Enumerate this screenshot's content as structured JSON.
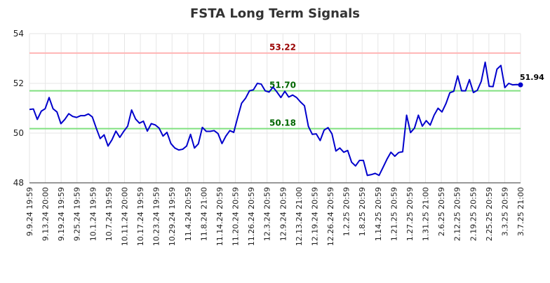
{
  "chart_data": {
    "type": "line",
    "title": "FSTA Long Term Signals",
    "xlabel": "",
    "ylabel": "",
    "ylim": [
      48,
      54
    ],
    "y_ticks": [
      "48",
      "50",
      "52",
      "54"
    ],
    "grid": true,
    "x_tick_labels": [
      "9.9.24 19:59",
      "9.13.24 20:00",
      "9.19.24 19:59",
      "9.25.24 19:59",
      "10.1.24 19:59",
      "10.7.24 19:59",
      "10.11.24 20:00",
      "10.17.24 19:59",
      "10.23.24 19:59",
      "10.29.24 19:59",
      "11.4.24 20:59",
      "11.8.24 21:00",
      "11.14.24 20:59",
      "11.20.24 20:59",
      "11.26.24 20:59",
      "12.3.24 20:59",
      "12.9.24 20:59",
      "12.13.24 21:00",
      "12.19.24 20:59",
      "12.26.24 20:59",
      "1.2.25 20:59",
      "1.8.25 20:59",
      "1.14.25 20:59",
      "1.21.25 20:59",
      "1.27.25 20:59",
      "1.31.25 21:00",
      "2.6.25 20:59",
      "2.12.25 20:59",
      "2.19.25 20:59",
      "2.25.25 20:59",
      "3.3.25 20:59",
      "3.7.25 21:00"
    ],
    "series": [
      {
        "color": "#0000cc",
        "values": [
          50.95,
          50.97,
          50.55,
          50.88,
          50.98,
          51.43,
          50.98,
          50.85,
          50.38,
          50.55,
          50.78,
          50.67,
          50.63,
          50.7,
          50.7,
          50.77,
          50.65,
          50.2,
          49.78,
          49.93,
          49.48,
          49.73,
          50.08,
          49.83,
          50.07,
          50.28,
          50.93,
          50.57,
          50.4,
          50.48,
          50.08,
          50.38,
          50.33,
          50.2,
          49.88,
          50.03,
          49.58,
          49.4,
          49.32,
          49.35,
          49.48,
          49.95,
          49.4,
          49.57,
          50.23,
          50.07,
          50.07,
          50.1,
          49.98,
          49.58,
          49.88,
          50.1,
          50.03,
          50.63,
          51.2,
          51.4,
          51.7,
          51.74,
          52.0,
          51.97,
          51.7,
          51.65,
          51.85,
          51.65,
          51.43,
          51.68,
          51.45,
          51.53,
          51.43,
          51.25,
          51.1,
          50.27,
          49.95,
          49.97,
          49.7,
          50.12,
          50.22,
          49.97,
          49.28,
          49.4,
          49.23,
          49.3,
          48.83,
          48.68,
          48.9,
          48.9,
          48.3,
          48.33,
          48.38,
          48.3,
          48.62,
          48.95,
          49.23,
          49.07,
          49.22,
          49.25,
          50.72,
          50.02,
          50.2,
          50.72,
          50.28,
          50.5,
          50.32,
          50.72,
          51.0,
          50.85,
          51.18,
          51.62,
          51.68,
          52.3,
          51.7,
          51.7,
          52.15,
          51.63,
          51.72,
          52.08,
          52.85,
          51.88,
          51.87,
          52.57,
          52.72,
          51.83,
          52.0,
          51.94,
          51.95,
          51.94
        ]
      }
    ],
    "last_value_label": "51.94",
    "annotations": [
      {
        "value": 53.22,
        "label": "53.22",
        "line_color": "#ffb3b3",
        "text_color": "#990000"
      },
      {
        "value": 51.7,
        "label": "51.70",
        "line_color": "#80e080",
        "text_color": "#006600"
      },
      {
        "value": 50.18,
        "label": "50.18",
        "line_color": "#80e080",
        "text_color": "#006600"
      }
    ]
  }
}
